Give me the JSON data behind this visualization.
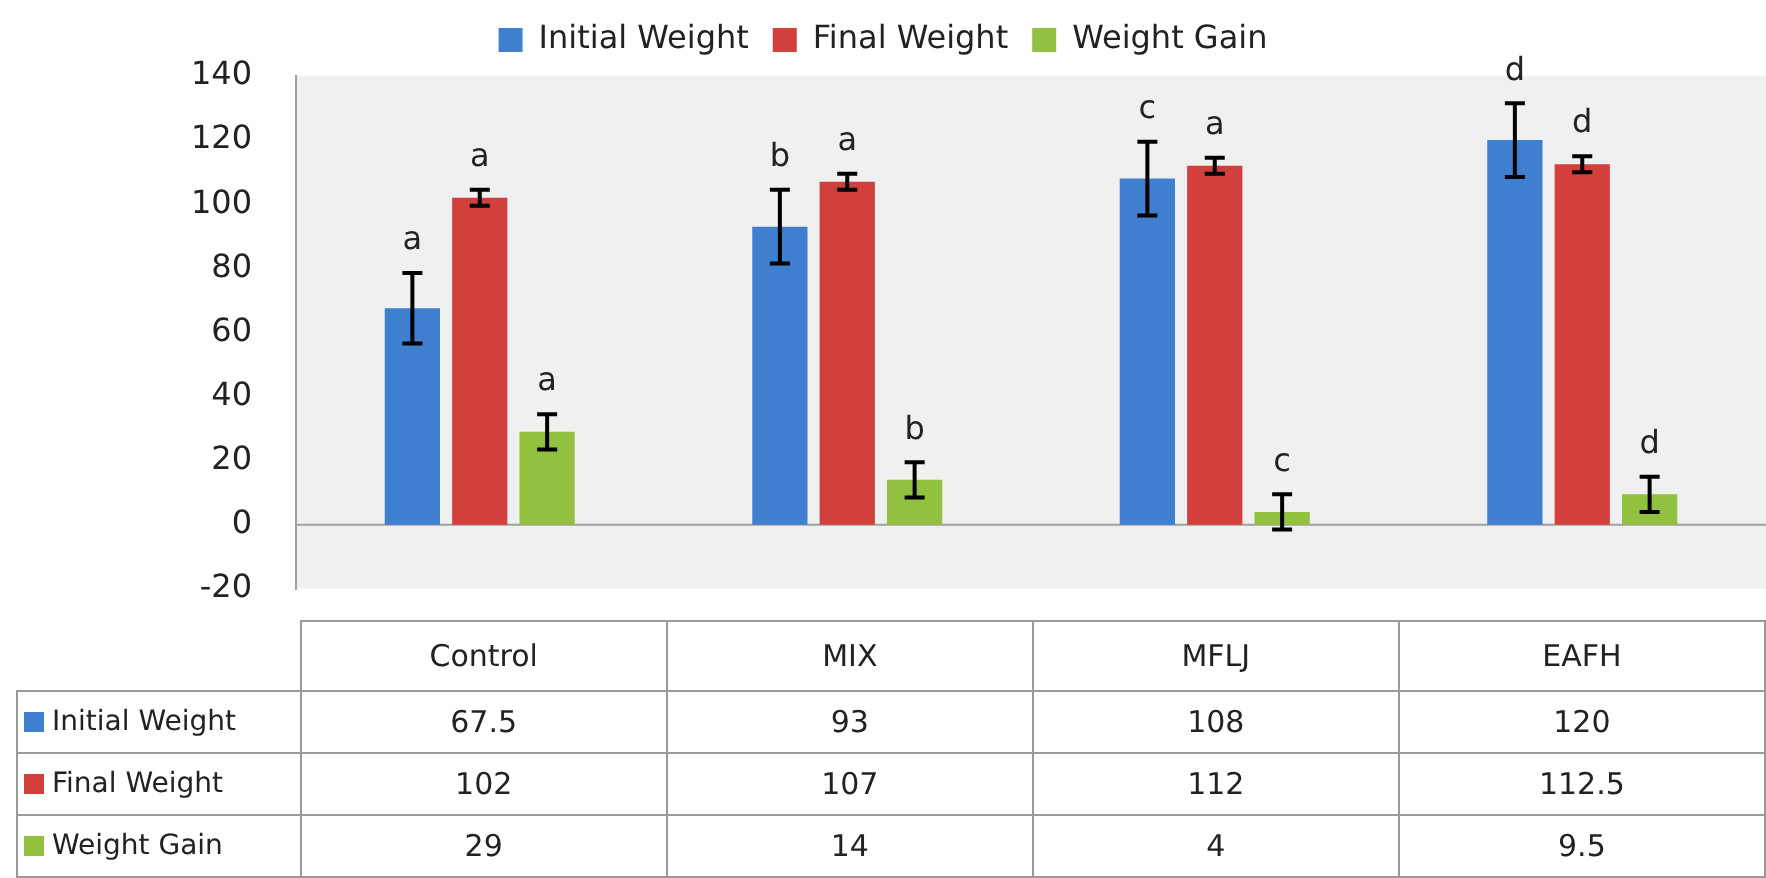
{
  "chart_data": {
    "type": "bar",
    "categories": [
      "Control",
      "MIX",
      "MFLJ",
      "EAFH"
    ],
    "series": [
      {
        "name": "Initial Weight",
        "color": "#3f7fd0",
        "values": [
          67.5,
          93,
          108,
          120
        ],
        "errors": [
          11,
          11.5,
          11.5,
          11.5
        ]
      },
      {
        "name": "Final Weight",
        "color": "#d33f3c",
        "values": [
          102,
          107,
          112,
          112.5
        ],
        "errors": [
          2.5,
          2.5,
          2.5,
          2.5
        ]
      },
      {
        "name": "Weight Gain",
        "color": "#92c13f",
        "values": [
          29,
          14,
          4,
          9.5
        ],
        "errors": [
          5.5,
          5.5,
          5.5,
          5.5
        ]
      }
    ],
    "annotations": [
      "a",
      "a",
      "a",
      "b",
      "a",
      "b",
      "c",
      "a",
      "c",
      "d",
      "d",
      "d"
    ],
    "ylim": [
      -20,
      140
    ],
    "yticks": [
      -20,
      0,
      20,
      40,
      60,
      80,
      100,
      120,
      140
    ],
    "ref_lines": [
      {
        "axis": "y",
        "value": 0,
        "color": "#a0a0a0"
      }
    ],
    "grid": false,
    "legend": "top",
    "data_labels": true
  }
}
